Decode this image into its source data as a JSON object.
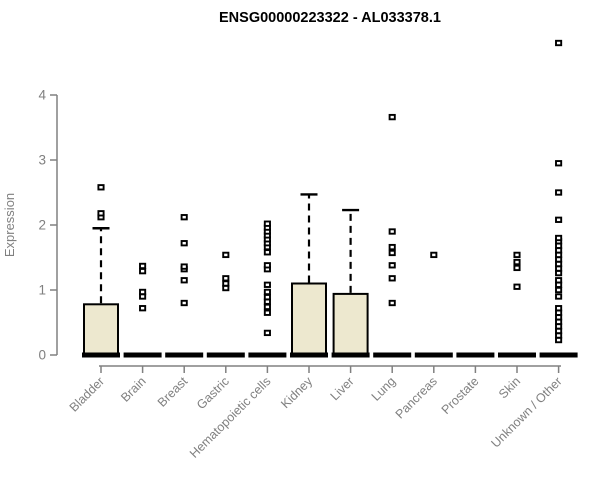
{
  "title": "ENSG00000223322 - AL033378.1",
  "chart_data": {
    "type": "boxplot",
    "title": "ENSG00000223322 - AL033378.1",
    "xlabel": "",
    "ylabel": "Expression",
    "ylim": [
      0,
      4
    ],
    "yticks": [
      0,
      1,
      2,
      3,
      4
    ],
    "grid": false,
    "legend": "none",
    "categories": [
      "Bladder",
      "Brain",
      "Breast",
      "Gastric",
      "Hematopoietic cells",
      "Kidney",
      "Liver",
      "Lung",
      "Pancreas",
      "Prostate",
      "Skin",
      "Unknown / Other"
    ],
    "series": [
      {
        "category": "Bladder",
        "q1": 0,
        "median": 0,
        "q3": 0.78,
        "whisker_low": 0,
        "whisker_high": 1.95,
        "outliers": [
          2.12,
          2.18,
          2.58
        ]
      },
      {
        "category": "Brain",
        "q1": 0,
        "median": 0,
        "q3": 0,
        "whisker_low": 0,
        "whisker_high": 0,
        "outliers": [
          0.72,
          0.9,
          0.97,
          1.29,
          1.37
        ]
      },
      {
        "category": "Breast",
        "q1": 0,
        "median": 0,
        "q3": 0,
        "whisker_low": 0,
        "whisker_high": 0,
        "outliers": [
          0.8,
          1.15,
          1.32,
          1.36,
          1.72,
          2.12
        ]
      },
      {
        "category": "Gastric",
        "q1": 0,
        "median": 0,
        "q3": 0,
        "whisker_low": 0,
        "whisker_high": 0,
        "outliers": [
          1.03,
          1.1,
          1.18,
          1.54
        ]
      },
      {
        "category": "Hematopoietic cells",
        "q1": 0,
        "median": 0,
        "q3": 0,
        "whisker_low": 0,
        "whisker_high": 0,
        "outliers": [
          0.34,
          0.65,
          0.74,
          0.82,
          0.89,
          0.97,
          1.08,
          1.32,
          1.38,
          1.58,
          1.66,
          1.72,
          1.78,
          1.84,
          1.9,
          1.96,
          2.02
        ]
      },
      {
        "category": "Kidney",
        "q1": 0,
        "median": 0,
        "q3": 1.1,
        "whisker_low": 0,
        "whisker_high": 2.47,
        "outliers": []
      },
      {
        "category": "Liver",
        "q1": 0,
        "median": 0,
        "q3": 0.94,
        "whisker_low": 0,
        "whisker_high": 2.23,
        "outliers": []
      },
      {
        "category": "Lung",
        "q1": 0,
        "median": 0,
        "q3": 0,
        "whisker_low": 0,
        "whisker_high": 0,
        "outliers": [
          0.8,
          1.18,
          1.38,
          1.57,
          1.66,
          1.9,
          3.66
        ]
      },
      {
        "category": "Pancreas",
        "q1": 0,
        "median": 0,
        "q3": 0,
        "whisker_low": 0,
        "whisker_high": 0,
        "outliers": [
          1.54
        ]
      },
      {
        "category": "Prostate",
        "q1": 0,
        "median": 0,
        "q3": 0,
        "whisker_low": 0,
        "whisker_high": 0,
        "outliers": []
      },
      {
        "category": "Skin",
        "q1": 0,
        "median": 0,
        "q3": 0,
        "whisker_low": 0,
        "whisker_high": 0,
        "outliers": [
          1.05,
          1.34,
          1.43,
          1.54
        ]
      },
      {
        "category": "Unknown / Other",
        "q1": 0,
        "median": 0,
        "q3": 0,
        "whisker_low": 0,
        "whisker_high": 0,
        "outliers": [
          0.23,
          0.3,
          0.37,
          0.44,
          0.51,
          0.58,
          0.65,
          0.72,
          0.9,
          1.0,
          1.08,
          1.15,
          1.26,
          1.33,
          1.4,
          1.47,
          1.54,
          1.61,
          1.68,
          1.75,
          1.8,
          2.08,
          2.5,
          2.95,
          4.8
        ]
      }
    ],
    "colors": {
      "box_fill": "#ede8cf",
      "box_stroke": "#000000",
      "median": "#000000",
      "outlier_stroke": "#000000",
      "axis": "#808080",
      "label": "#808080",
      "title": "#000000",
      "background": "#ffffff"
    }
  }
}
